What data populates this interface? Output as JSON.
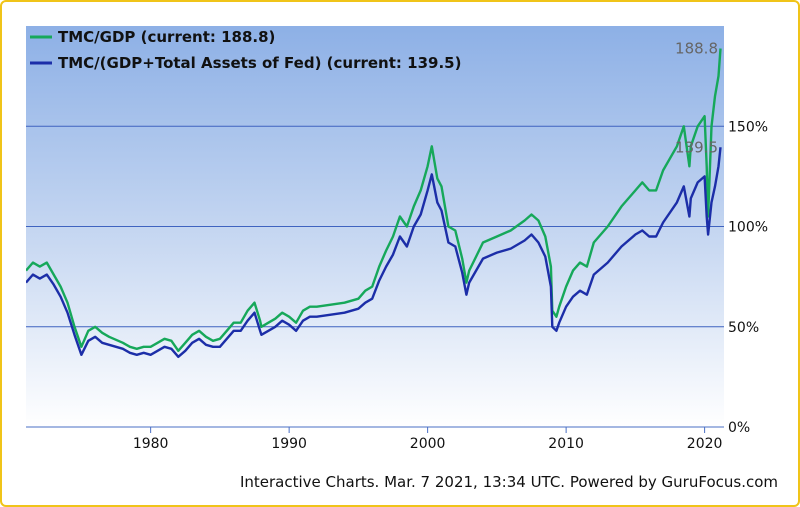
{
  "chart_data": {
    "type": "line",
    "title": "",
    "xlabel": "",
    "ylabel": "",
    "xlim": [
      1971,
      2021.4
    ],
    "ylim": [
      0,
      200
    ],
    "y_unit": "%",
    "x_ticks": [
      1980,
      1990,
      2000,
      2010,
      2020
    ],
    "x_tick_labels": [
      "1980",
      "1990",
      "2000",
      "2010",
      "2020"
    ],
    "y_ticks": [
      0,
      50,
      100,
      150
    ],
    "y_tick_labels": [
      "0%",
      "50%",
      "100%",
      "150%"
    ],
    "grid": "horizontal",
    "legend_position": "top-left",
    "series": [
      {
        "name": "TMC/GDP (current: 188.8)",
        "color": "#16a85a",
        "end_label": "188.8",
        "x": [
          1971,
          1971.5,
          1972,
          1972.5,
          1973,
          1973.5,
          1974,
          1974.5,
          1975,
          1975.5,
          1976,
          1976.5,
          1977,
          1978,
          1978.5,
          1979,
          1979.5,
          1980,
          1980.5,
          1981,
          1981.5,
          1982,
          1982.5,
          1983,
          1983.5,
          1984,
          1984.5,
          1985,
          1985.5,
          1986,
          1986.5,
          1987,
          1987.5,
          1987.9,
          1988,
          1988.5,
          1989,
          1989.5,
          1990,
          1990.5,
          1991,
          1991.5,
          1992,
          1993,
          1994,
          1995,
          1995.5,
          1996,
          1996.5,
          1997,
          1997.5,
          1998,
          1998.5,
          1999,
          1999.5,
          2000,
          2000.3,
          2000.7,
          2001,
          2001.5,
          2002,
          2002.5,
          2002.8,
          2003,
          2003.5,
          2004,
          2005,
          2006,
          2007,
          2007.5,
          2008,
          2008.5,
          2008.9,
          2009,
          2009.3,
          2009.5,
          2010,
          2010.5,
          2011,
          2011.5,
          2012,
          2013,
          2014,
          2015,
          2015.5,
          2016,
          2016.5,
          2017,
          2018,
          2018.5,
          2018.9,
          2019,
          2019.5,
          2020,
          2020.15,
          2020.25,
          2020.5,
          2020.75,
          2021,
          2021.15
        ],
        "y": [
          78,
          82,
          80,
          82,
          76,
          70,
          62,
          50,
          40,
          48,
          50,
          47,
          45,
          42,
          40,
          39,
          40,
          40,
          42,
          44,
          43,
          38,
          42,
          46,
          48,
          45,
          43,
          44,
          48,
          52,
          52,
          58,
          62,
          53,
          50,
          52,
          54,
          57,
          55,
          52,
          58,
          60,
          60,
          61,
          62,
          64,
          68,
          70,
          80,
          88,
          95,
          105,
          100,
          110,
          118,
          130,
          140,
          124,
          120,
          100,
          98,
          84,
          72,
          78,
          85,
          92,
          95,
          98,
          103,
          106,
          103,
          95,
          80,
          58,
          55,
          60,
          70,
          78,
          82,
          80,
          92,
          100,
          110,
          118,
          122,
          118,
          118,
          128,
          140,
          150,
          130,
          140,
          150,
          155,
          130,
          105,
          150,
          165,
          175,
          188.8
        ]
      },
      {
        "name": "TMC/(GDP+Total Assets of Fed) (current: 139.5)",
        "color": "#1c2ea8",
        "end_label": "139.5",
        "x": [
          1971,
          1971.5,
          1972,
          1972.5,
          1973,
          1973.5,
          1974,
          1974.5,
          1975,
          1975.5,
          1976,
          1976.5,
          1977,
          1978,
          1978.5,
          1979,
          1979.5,
          1980,
          1980.5,
          1981,
          1981.5,
          1982,
          1982.5,
          1983,
          1983.5,
          1984,
          1984.5,
          1985,
          1985.5,
          1986,
          1986.5,
          1987,
          1987.5,
          1987.9,
          1988,
          1988.5,
          1989,
          1989.5,
          1990,
          1990.5,
          1991,
          1991.5,
          1992,
          1993,
          1994,
          1995,
          1995.5,
          1996,
          1996.5,
          1997,
          1997.5,
          1998,
          1998.5,
          1999,
          1999.5,
          2000,
          2000.3,
          2000.7,
          2001,
          2001.5,
          2002,
          2002.5,
          2002.8,
          2003,
          2003.5,
          2004,
          2005,
          2006,
          2007,
          2007.5,
          2008,
          2008.5,
          2008.9,
          2009,
          2009.3,
          2009.5,
          2010,
          2010.5,
          2011,
          2011.5,
          2012,
          2013,
          2014,
          2015,
          2015.5,
          2016,
          2016.5,
          2017,
          2018,
          2018.5,
          2018.9,
          2019,
          2019.5,
          2020,
          2020.15,
          2020.25,
          2020.5,
          2020.75,
          2021,
          2021.15
        ],
        "y": [
          72,
          76,
          74,
          76,
          71,
          65,
          57,
          46,
          36,
          43,
          45,
          42,
          41,
          39,
          37,
          36,
          37,
          36,
          38,
          40,
          39,
          35,
          38,
          42,
          44,
          41,
          40,
          40,
          44,
          48,
          48,
          53,
          57,
          48,
          46,
          48,
          50,
          53,
          51,
          48,
          53,
          55,
          55,
          56,
          57,
          59,
          62,
          64,
          73,
          80,
          86,
          95,
          90,
          100,
          106,
          118,
          126,
          112,
          108,
          92,
          90,
          77,
          66,
          72,
          78,
          84,
          87,
          89,
          93,
          96,
          92,
          85,
          70,
          50,
          48,
          52,
          60,
          65,
          68,
          66,
          76,
          82,
          90,
          96,
          98,
          95,
          95,
          102,
          112,
          120,
          105,
          114,
          122,
          125,
          105,
          96,
          112,
          120,
          130,
          139.5
        ]
      }
    ],
    "footer": "Interactive Charts. Mar. 7 2021, 13:34 UTC. Powered by GuruFocus.com"
  }
}
